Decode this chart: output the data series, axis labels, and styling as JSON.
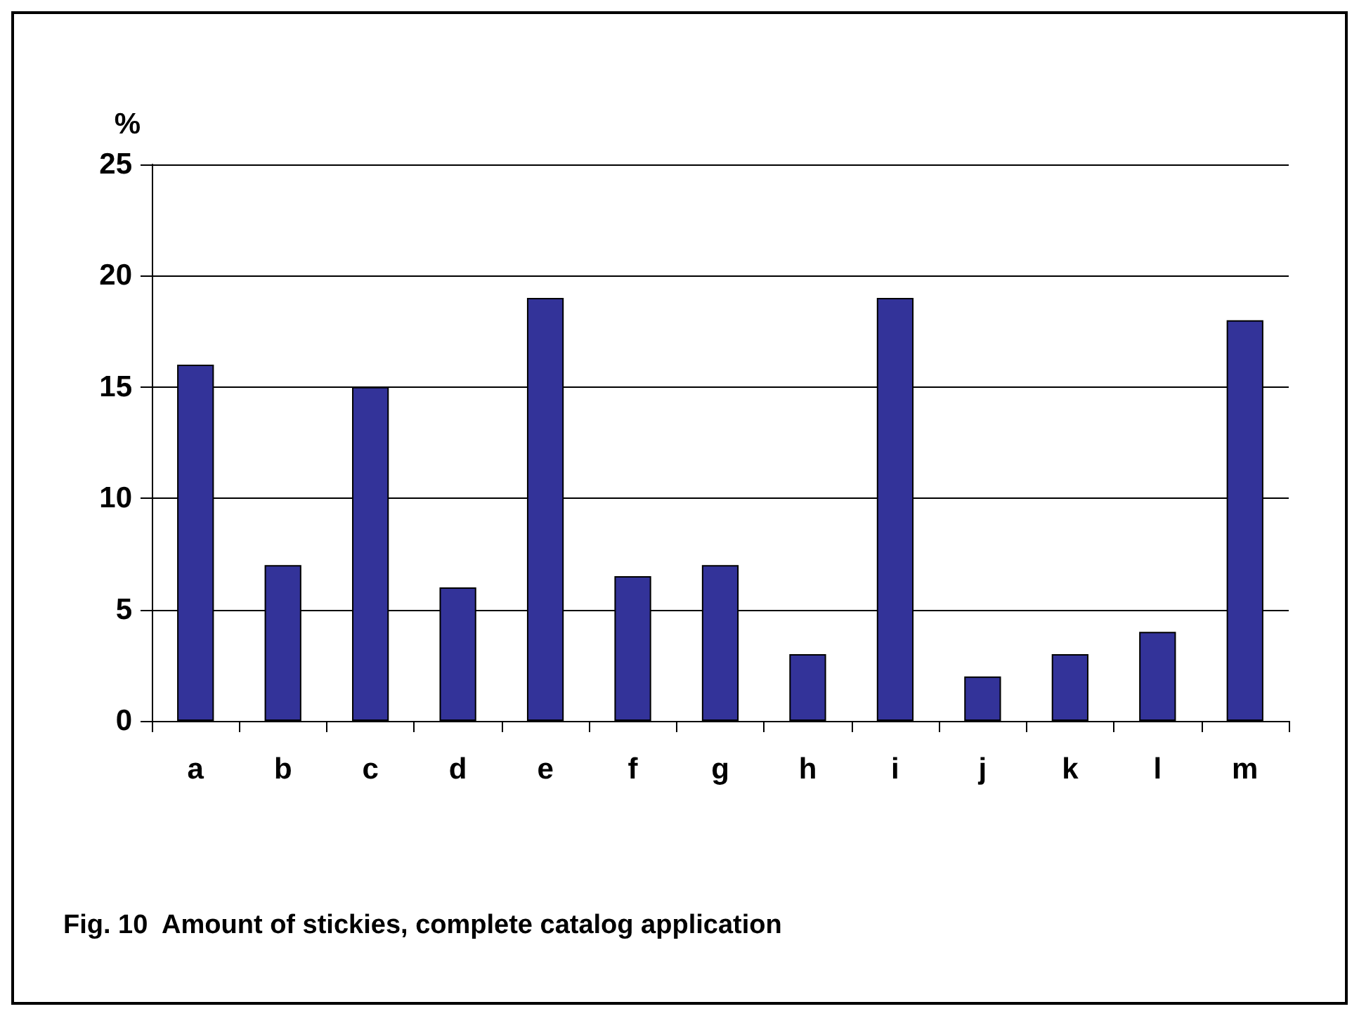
{
  "chart_data": {
    "type": "bar",
    "title": "Fig. 10  Amount of stickies, complete catalog application",
    "ylabel": "%",
    "categories": [
      "a",
      "b",
      "c",
      "d",
      "e",
      "f",
      "g",
      "h",
      "i",
      "j",
      "k",
      "l",
      "m"
    ],
    "values": [
      16,
      7,
      15,
      6,
      19,
      6.5,
      7,
      3,
      19,
      2,
      3,
      4,
      18
    ],
    "color": "#333399",
    "ylim": [
      0,
      25
    ],
    "yticks": [
      0,
      5,
      10,
      15,
      20,
      25
    ],
    "grid": "y"
  }
}
